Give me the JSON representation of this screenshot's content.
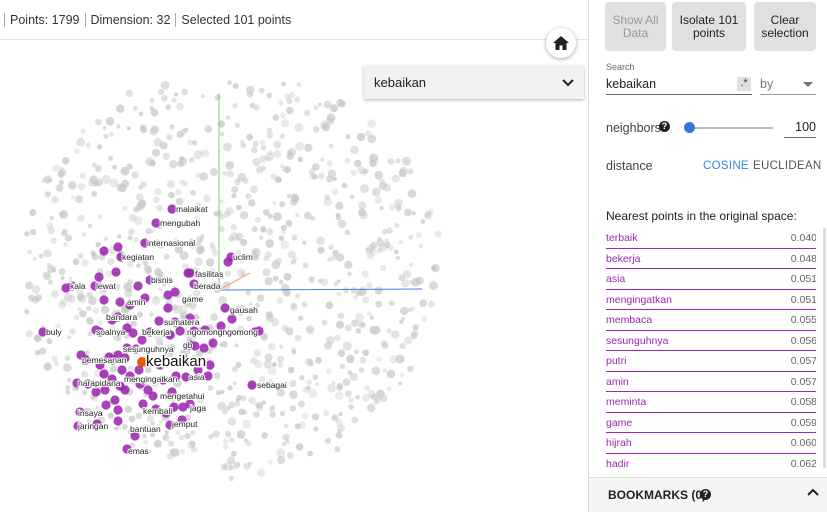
{
  "status": {
    "points": "Points: 1799",
    "dimension": "Dimension: 32",
    "selected": "Selected 101 points"
  },
  "home_icon": "home-icon",
  "dropdown": {
    "value": "kebaikan",
    "icon": "chevron-down-icon"
  },
  "buttons": {
    "show_all": "Show All Data",
    "isolate": "Isolate 101 points",
    "clear": "Clear selection"
  },
  "search": {
    "label": "Search",
    "value": "kebaikan",
    "regex_label": ".*",
    "by_value": "by"
  },
  "neighbors": {
    "label": "neighbors",
    "value": "100",
    "slider_fraction": 0.04
  },
  "distance": {
    "label": "distance",
    "cosine": "COSINE",
    "euclidean": "EUCLIDEAN",
    "selected": "COSINE"
  },
  "nearest": {
    "title": "Nearest points in the original space:",
    "items": [
      {
        "word": "terbaik",
        "value": "0.040"
      },
      {
        "word": "bekerja",
        "value": "0.048"
      },
      {
        "word": "asia",
        "value": "0.051"
      },
      {
        "word": "mengingatkan",
        "value": "0.051"
      },
      {
        "word": "membaca",
        "value": "0.055"
      },
      {
        "word": "sesunguhnya",
        "value": "0.056"
      },
      {
        "word": "putri",
        "value": "0.057"
      },
      {
        "word": "amin",
        "value": "0.057"
      },
      {
        "word": "meminta",
        "value": "0.058"
      },
      {
        "word": "game",
        "value": "0.059"
      },
      {
        "word": "hijrah",
        "value": "0.060"
      },
      {
        "word": "hadir",
        "value": "0.062"
      }
    ]
  },
  "bookmarks": {
    "label": "BOOKMARKS (0)"
  },
  "scatter": {
    "highlight_color": "#9c27b0",
    "background_point_color": "#c8c8c8",
    "center_word": "kebaikan",
    "labels": [
      "malaikat",
      "mengubah",
      "internasional",
      "kegiatan",
      "uclim",
      "fasilitas",
      "bisnis",
      "berada",
      "kala",
      "lewat",
      "amin",
      "game",
      "gausah",
      "bandara",
      "sumatera",
      "soalnya",
      "bekerja",
      "ngomongngomong",
      "buly",
      "gb",
      "sesunguhnya",
      "pemesanan",
      "asia",
      "narapidana",
      "mengingatkan",
      "sebagai",
      "mengetahui",
      "jaga",
      "insaya",
      "kembali",
      "jemput",
      "jaringan",
      "bantuan",
      "emas"
    ]
  }
}
